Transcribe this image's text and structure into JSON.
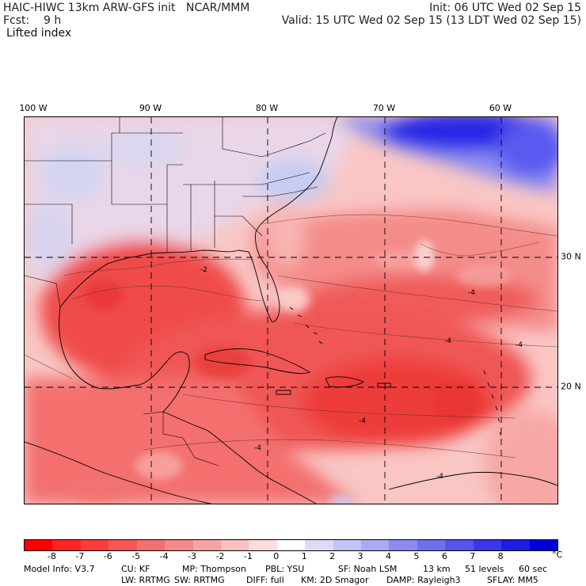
{
  "header": {
    "model_line": "HAIC-HIWC 13km ARW-GFS init   NCAR/MMM",
    "fcst_line": "Fcst:    9 h",
    "init_line": "Init: 06 UTC Wed 02 Sep 15",
    "valid_line": "Valid: 15 UTC Wed 02 Sep 15 (13 LDT Wed 02 Sep 15)",
    "product": "Lifted index"
  },
  "map": {
    "lon_labels": [
      "100 W",
      "90 W",
      "80 W",
      "70 W",
      "60 W"
    ],
    "lat_labels": [
      "30 N",
      "20 N"
    ],
    "contour_labels": [
      "-2",
      "-4",
      "-4",
      "-4",
      "-4",
      "-4",
      "-4"
    ],
    "field_colors": {
      "strong_negative": "#ee3838",
      "negative": "#f47a78",
      "weak_negative": "#f9b7b6",
      "near_zero": "#ffe2e0",
      "weak_positive": "#cfd4f6",
      "positive": "#5a5aef",
      "strong_positive": "#0000dd"
    }
  },
  "colorbar": {
    "colors": [
      "#ff0000",
      "#ff2424",
      "#fb3c3c",
      "#f65656",
      "#f37070",
      "#f38a8a",
      "#f5a4a4",
      "#f8c0c0",
      "#fcdcdc",
      "#ffffff",
      "#dcdcfa",
      "#c4c4f6",
      "#aaaaf4",
      "#8c8cf0",
      "#7070ee",
      "#5454ea",
      "#3838e8",
      "#1c1ce4",
      "#0000dc"
    ],
    "ticks": [
      "-8",
      "-7",
      "-6",
      "-5",
      "-4",
      "-3",
      "-2",
      "-1",
      "0",
      "1",
      "2",
      "3",
      "4",
      "5",
      "6",
      "7",
      "8"
    ],
    "unit": "°C"
  },
  "model_info": {
    "line1": [
      "Model Info: V3.7",
      "CU: KF",
      "MP: Thompson",
      "PBL: YSU",
      "SF: Noah LSM",
      "13 km",
      "51 levels",
      "60 sec"
    ],
    "line2": [
      "LW: RRTMG",
      "SW: RRTMG",
      "DIFF: full",
      "KM: 2D Smagor",
      "DAMP: Rayleigh3",
      "SFLAY: MM5"
    ]
  }
}
